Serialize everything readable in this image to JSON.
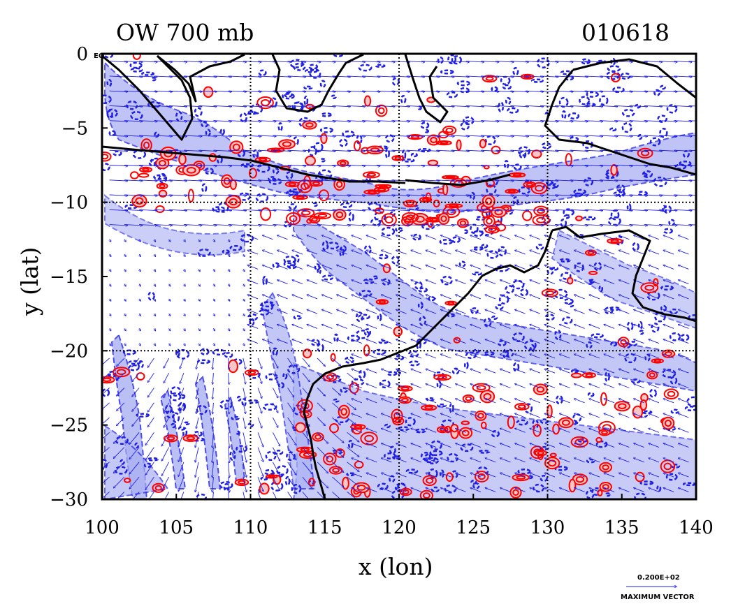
{
  "plot": {
    "title_left": "OW 700 mb",
    "title_right": "010618",
    "xlabel": "x (lon)",
    "ylabel": "y (lat)",
    "x_ticks": [
      "100",
      "105",
      "110",
      "115",
      "120",
      "125",
      "130",
      "135",
      "140"
    ],
    "y_ticks": [
      "0",
      "−5",
      "−10",
      "−15",
      "−20",
      "−25",
      "−30"
    ],
    "eq_label": "EQ",
    "legend_vector_value": "0.200E+02",
    "legend_vector_label": "MAXIMUM VECTOR"
  },
  "chart_data": {
    "type": "map",
    "xlim": [
      100,
      140
    ],
    "ylim": [
      -30,
      0
    ],
    "grid_lon": [
      110,
      120,
      130
    ],
    "grid_lat": [
      -10,
      -20
    ],
    "colors": {
      "positive_contour": "#ff0000",
      "negative_contour": "#1f1fe6",
      "negative_fill": "#aab0f2",
      "vectors": "#1f1fe6",
      "coast": "#000000"
    }
  }
}
